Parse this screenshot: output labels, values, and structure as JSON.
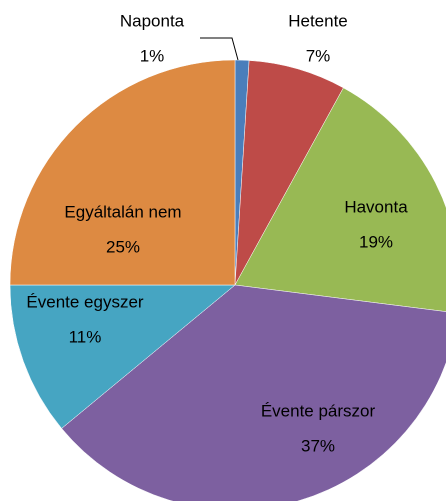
{
  "chart_data": {
    "type": "pie",
    "categories": [
      "Naponta",
      "Hetente",
      "Havonta",
      "Évente párszor",
      "Évente egyszer",
      "Egyáltalán nem"
    ],
    "values": [
      1,
      7,
      19,
      37,
      11,
      25
    ],
    "value_labels": [
      "1%",
      "7%",
      "19%",
      "37%",
      "11%",
      "25%"
    ],
    "colors": [
      "#4a7ebb",
      "#be4b48",
      "#98b954",
      "#7d60a0",
      "#46a5c2",
      "#dd8a42"
    ]
  }
}
